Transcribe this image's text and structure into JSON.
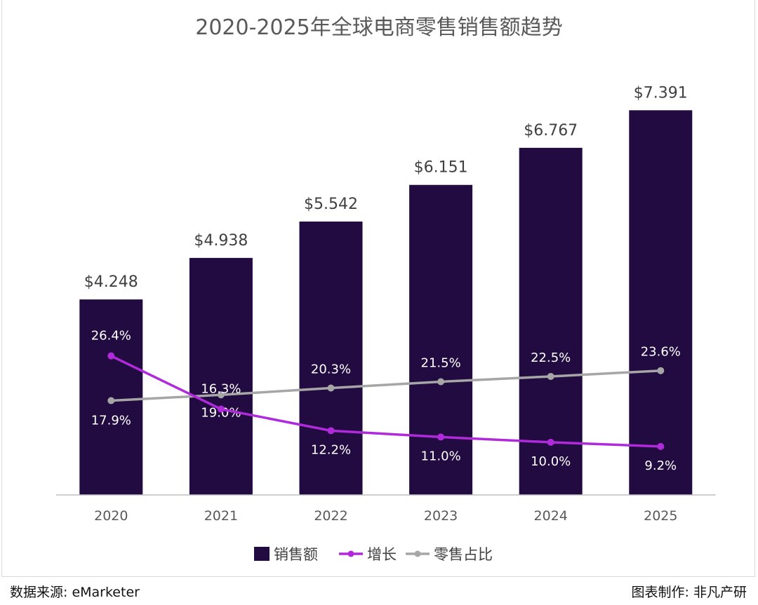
{
  "chart_data": {
    "type": "bar",
    "title": "2020-2025年全球电商零售销售额趋势",
    "categories": [
      "2020",
      "2021",
      "2022",
      "2023",
      "2024",
      "2025"
    ],
    "series": [
      {
        "name": "销售额",
        "type": "bar",
        "values": [
          4.248,
          4.938,
          5.542,
          6.151,
          6.767,
          7.391
        ],
        "labels": [
          "$4.248",
          "$4.938",
          "$5.542",
          "$6.151",
          "$6.767",
          "$7.391"
        ],
        "color": "#220b40"
      },
      {
        "name": "增长",
        "type": "line",
        "values": [
          26.4,
          16.3,
          12.2,
          11.0,
          10.0,
          9.2
        ],
        "labels": [
          "26.4%",
          "16.3%",
          "12.2%",
          "11.0%",
          "10.0%",
          "9.2%"
        ],
        "color": "#b02adb"
      },
      {
        "name": "零售占比",
        "type": "line",
        "values": [
          17.9,
          19.0,
          20.3,
          21.5,
          22.5,
          23.6
        ],
        "labels": [
          "17.9%",
          "19.0%",
          "20.3%",
          "21.5%",
          "22.5%",
          "23.6%"
        ],
        "color": "#a6a6a6"
      }
    ],
    "bar_ylim": [
      1,
      8
    ],
    "pct_ylim": [
      0,
      80
    ],
    "legend_position": "bottom",
    "grid": false
  },
  "footer": {
    "source": "数据来源: eMarketer",
    "credit": "图表制作: 非凡产研"
  }
}
